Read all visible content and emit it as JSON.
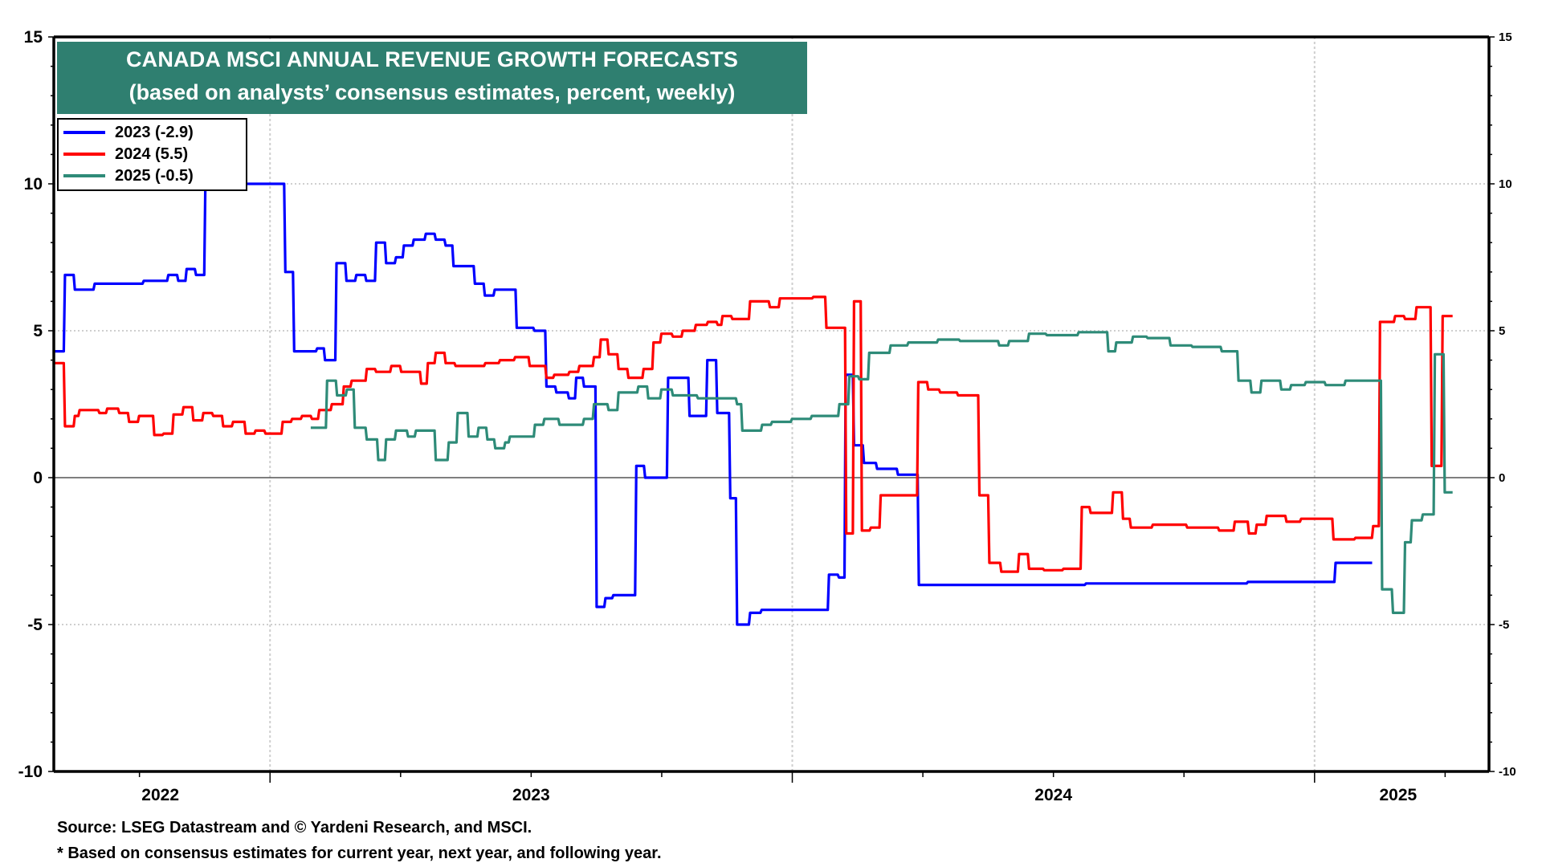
{
  "chart_data": {
    "type": "line",
    "title": "CANADA MSCI ANNUAL REVENUE GROWTH FORECASTS",
    "subtitle": "(based on analysts’ consensus estimates, percent, weekly)",
    "xlabel": "",
    "ylabel": "",
    "x_unit": "decimal year",
    "xlim": [
      2022.586,
      2025.334
    ],
    "ylim": [
      -10,
      15
    ],
    "y_ticks": [
      15,
      10,
      5,
      0,
      -5,
      -10
    ],
    "x_tick_labels": [
      {
        "label": "2022",
        "at": 2022.79
      },
      {
        "label": "2023",
        "at": 2023.5
      },
      {
        "label": "2024",
        "at": 2024.5
      },
      {
        "label": "2025",
        "at": 2025.16
      }
    ],
    "year_boundaries": [
      2023,
      2024,
      2025
    ],
    "grid": true,
    "zero_line": true,
    "legend_position": "top-left",
    "step": true,
    "series": [
      {
        "name": "2023 (-2.9)",
        "color": "#0000ff",
        "points": [
          [
            2022.586,
            4.3
          ],
          [
            2022.605,
            6.9
          ],
          [
            2022.624,
            6.4
          ],
          [
            2022.662,
            6.6
          ],
          [
            2022.756,
            6.7
          ],
          [
            2022.803,
            6.9
          ],
          [
            2022.822,
            6.7
          ],
          [
            2022.838,
            7.1
          ],
          [
            2022.856,
            6.9
          ],
          [
            2022.874,
            10.2
          ],
          [
            2022.889,
            10.0
          ],
          [
            2023.027,
            7.0
          ],
          [
            2023.044,
            4.3
          ],
          [
            2023.088,
            4.4
          ],
          [
            2023.103,
            4.0
          ],
          [
            2023.125,
            7.3
          ],
          [
            2023.144,
            6.7
          ],
          [
            2023.163,
            6.9
          ],
          [
            2023.182,
            6.7
          ],
          [
            2023.201,
            8.0
          ],
          [
            2023.22,
            7.3
          ],
          [
            2023.239,
            7.5
          ],
          [
            2023.254,
            7.9
          ],
          [
            2023.273,
            8.1
          ],
          [
            2023.296,
            8.3
          ],
          [
            2023.315,
            8.1
          ],
          [
            2023.334,
            7.9
          ],
          [
            2023.349,
            7.2
          ],
          [
            2023.39,
            6.6
          ],
          [
            2023.409,
            6.2
          ],
          [
            2023.428,
            6.4
          ],
          [
            2023.47,
            5.1
          ],
          [
            2023.504,
            5.0
          ],
          [
            2023.527,
            3.1
          ],
          [
            2023.546,
            2.9
          ],
          [
            2023.57,
            2.7
          ],
          [
            2023.584,
            3.4
          ],
          [
            2023.599,
            3.1
          ],
          [
            2023.623,
            -4.4
          ],
          [
            2023.64,
            -4.1
          ],
          [
            2023.655,
            -4.0
          ],
          [
            2023.699,
            0.4
          ],
          [
            2023.716,
            0.0
          ],
          [
            2023.76,
            3.4
          ],
          [
            2023.801,
            2.1
          ],
          [
            2023.835,
            4.0
          ],
          [
            2023.854,
            2.2
          ],
          [
            2023.879,
            -0.7
          ],
          [
            2023.892,
            -5.0
          ],
          [
            2023.917,
            -4.6
          ],
          [
            2023.939,
            -4.5
          ],
          [
            2024.068,
            -3.3
          ],
          [
            2024.087,
            -3.4
          ],
          [
            2024.1,
            3.5
          ],
          [
            2024.116,
            1.1
          ],
          [
            2024.135,
            0.5
          ],
          [
            2024.16,
            0.3
          ],
          [
            2024.2,
            0.1
          ],
          [
            2024.24,
            -3.65
          ],
          [
            2024.56,
            -3.6
          ],
          [
            2024.87,
            -3.55
          ],
          [
            2025.02,
            -3.55
          ],
          [
            2025.038,
            -2.9
          ],
          [
            2025.108,
            -2.9
          ]
        ]
      },
      {
        "name": "2024 (5.5)",
        "color": "#ff0000",
        "points": [
          [
            2022.586,
            3.9
          ],
          [
            2022.605,
            1.75
          ],
          [
            2022.624,
            2.1
          ],
          [
            2022.633,
            2.3
          ],
          [
            2022.671,
            2.2
          ],
          [
            2022.686,
            2.35
          ],
          [
            2022.709,
            2.2
          ],
          [
            2022.728,
            1.9
          ],
          [
            2022.747,
            2.1
          ],
          [
            2022.776,
            1.45
          ],
          [
            2022.794,
            1.5
          ],
          [
            2022.813,
            2.15
          ],
          [
            2022.832,
            2.4
          ],
          [
            2022.851,
            1.95
          ],
          [
            2022.87,
            2.2
          ],
          [
            2022.889,
            2.1
          ],
          [
            2022.908,
            1.75
          ],
          [
            2022.927,
            1.9
          ],
          [
            2022.951,
            1.5
          ],
          [
            2022.97,
            1.6
          ],
          [
            2022.989,
            1.5
          ],
          [
            2023.022,
            1.9
          ],
          [
            2023.04,
            2.0
          ],
          [
            2023.059,
            2.1
          ],
          [
            2023.078,
            2.0
          ],
          [
            2023.092,
            2.3
          ],
          [
            2023.116,
            2.5
          ],
          [
            2023.139,
            3.1
          ],
          [
            2023.154,
            3.3
          ],
          [
            2023.183,
            3.7
          ],
          [
            2023.201,
            3.6
          ],
          [
            2023.23,
            3.8
          ],
          [
            2023.249,
            3.6
          ],
          [
            2023.287,
            3.2
          ],
          [
            2023.3,
            3.9
          ],
          [
            2023.315,
            4.25
          ],
          [
            2023.334,
            3.9
          ],
          [
            2023.353,
            3.8
          ],
          [
            2023.41,
            3.9
          ],
          [
            2023.438,
            4.0
          ],
          [
            2023.467,
            4.1
          ],
          [
            2023.495,
            3.8
          ],
          [
            2023.527,
            3.4
          ],
          [
            2023.542,
            3.5
          ],
          [
            2023.571,
            3.6
          ],
          [
            2023.59,
            3.8
          ],
          [
            2023.618,
            4.1
          ],
          [
            2023.631,
            4.7
          ],
          [
            2023.646,
            4.2
          ],
          [
            2023.665,
            3.7
          ],
          [
            2023.684,
            3.4
          ],
          [
            2023.713,
            3.7
          ],
          [
            2023.732,
            4.6
          ],
          [
            2023.747,
            4.9
          ],
          [
            2023.769,
            4.8
          ],
          [
            2023.788,
            5.0
          ],
          [
            2023.813,
            5.2
          ],
          [
            2023.836,
            5.3
          ],
          [
            2023.855,
            5.2
          ],
          [
            2023.864,
            5.5
          ],
          [
            2023.883,
            5.4
          ],
          [
            2023.917,
            6.0
          ],
          [
            2023.955,
            5.8
          ],
          [
            2023.974,
            6.1
          ],
          [
            2024.038,
            6.15
          ],
          [
            2024.063,
            5.1
          ],
          [
            2024.101,
            -1.9
          ],
          [
            2024.116,
            6.0
          ],
          [
            2024.131,
            -1.8
          ],
          [
            2024.148,
            -1.7
          ],
          [
            2024.167,
            -0.6
          ],
          [
            2024.239,
            3.25
          ],
          [
            2024.258,
            3.0
          ],
          [
            2024.281,
            2.9
          ],
          [
            2024.315,
            2.8
          ],
          [
            2024.356,
            -0.6
          ],
          [
            2024.375,
            -2.9
          ],
          [
            2024.398,
            -3.2
          ],
          [
            2024.432,
            -2.6
          ],
          [
            2024.451,
            -3.1
          ],
          [
            2024.48,
            -3.15
          ],
          [
            2024.517,
            -3.1
          ],
          [
            2024.552,
            -1.0
          ],
          [
            2024.569,
            -1.2
          ],
          [
            2024.593,
            -1.2
          ],
          [
            2024.612,
            -0.5
          ],
          [
            2024.631,
            -1.4
          ],
          [
            2024.646,
            -1.7
          ],
          [
            2024.688,
            -1.6
          ],
          [
            2024.754,
            -1.7
          ],
          [
            2024.815,
            -1.8
          ],
          [
            2024.845,
            -1.5
          ],
          [
            2024.872,
            -1.9
          ],
          [
            2024.887,
            -1.6
          ],
          [
            2024.906,
            -1.3
          ],
          [
            2024.944,
            -1.5
          ],
          [
            2024.972,
            -1.4
          ],
          [
            2025.034,
            -2.1
          ],
          [
            2025.076,
            -2.05
          ],
          [
            2025.11,
            -1.65
          ],
          [
            2025.123,
            5.3
          ],
          [
            2025.152,
            5.5
          ],
          [
            2025.171,
            5.4
          ],
          [
            2025.193,
            5.8
          ],
          [
            2025.222,
            0.4
          ],
          [
            2025.243,
            5.5
          ],
          [
            2025.262,
            5.5
          ]
        ]
      },
      {
        "name": "2025 (-0.5)",
        "color": "#2e8b78",
        "points": [
          [
            2023.078,
            1.7
          ],
          [
            2023.107,
            3.3
          ],
          [
            2023.126,
            2.8
          ],
          [
            2023.145,
            3.0
          ],
          [
            2023.16,
            1.7
          ],
          [
            2023.183,
            1.3
          ],
          [
            2023.205,
            0.6
          ],
          [
            2023.22,
            1.3
          ],
          [
            2023.239,
            1.6
          ],
          [
            2023.262,
            1.4
          ],
          [
            2023.277,
            1.6
          ],
          [
            2023.315,
            0.6
          ],
          [
            2023.34,
            1.2
          ],
          [
            2023.357,
            2.2
          ],
          [
            2023.378,
            1.4
          ],
          [
            2023.397,
            1.7
          ],
          [
            2023.414,
            1.3
          ],
          [
            2023.429,
            1.0
          ],
          [
            2023.448,
            1.2
          ],
          [
            2023.457,
            1.4
          ],
          [
            2023.505,
            1.8
          ],
          [
            2023.523,
            2.0
          ],
          [
            2023.552,
            1.8
          ],
          [
            2023.599,
            2.0
          ],
          [
            2023.618,
            2.5
          ],
          [
            2023.646,
            2.3
          ],
          [
            2023.665,
            2.9
          ],
          [
            2023.703,
            3.1
          ],
          [
            2023.722,
            2.7
          ],
          [
            2023.747,
            3.0
          ],
          [
            2023.769,
            2.8
          ],
          [
            2023.817,
            2.7
          ],
          [
            2023.892,
            2.5
          ],
          [
            2023.902,
            1.6
          ],
          [
            2023.94,
            1.8
          ],
          [
            2023.959,
            1.9
          ],
          [
            2023.997,
            2.0
          ],
          [
            2024.035,
            2.1
          ],
          [
            2024.088,
            2.5
          ],
          [
            2024.107,
            3.45
          ],
          [
            2024.126,
            3.35
          ],
          [
            2024.145,
            4.25
          ],
          [
            2024.186,
            4.5
          ],
          [
            2024.22,
            4.6
          ],
          [
            2024.277,
            4.7
          ],
          [
            2024.319,
            4.65
          ],
          [
            2024.394,
            4.5
          ],
          [
            2024.413,
            4.65
          ],
          [
            2024.451,
            4.9
          ],
          [
            2024.485,
            4.85
          ],
          [
            2024.546,
            4.95
          ],
          [
            2024.603,
            4.3
          ],
          [
            2024.618,
            4.6
          ],
          [
            2024.65,
            4.8
          ],
          [
            2024.678,
            4.75
          ],
          [
            2024.722,
            4.5
          ],
          [
            2024.764,
            4.45
          ],
          [
            2024.82,
            4.3
          ],
          [
            2024.852,
            3.3
          ],
          [
            2024.877,
            2.9
          ],
          [
            2024.896,
            3.3
          ],
          [
            2024.934,
            3.0
          ],
          [
            2024.953,
            3.15
          ],
          [
            2024.981,
            3.25
          ],
          [
            2025.019,
            3.15
          ],
          [
            2025.057,
            3.3
          ],
          [
            2025.127,
            -3.8
          ],
          [
            2025.148,
            -4.6
          ],
          [
            2025.171,
            -2.2
          ],
          [
            2025.184,
            -1.45
          ],
          [
            2025.205,
            -1.25
          ],
          [
            2025.228,
            4.2
          ],
          [
            2025.247,
            -0.5
          ],
          [
            2025.262,
            -0.5
          ]
        ]
      }
    ]
  },
  "header": {
    "title": "CANADA MSCI ANNUAL REVENUE GROWTH FORECASTS",
    "subtitle": "(based on analysts’ consensus estimates, percent, weekly)",
    "title_bg": "#2f7f70"
  },
  "legend": [
    {
      "label": "2023 (-2.9)",
      "color": "#0000ff"
    },
    {
      "label": "2024 (5.5)",
      "color": "#ff0000"
    },
    {
      "label": "2025 (-0.5)",
      "color": "#2e8b78"
    }
  ],
  "footer": {
    "source": "Source: LSEG Datastream and © Yardeni Research, and MSCI.",
    "note": "* Based on consensus estimates for current year, next year, and following year."
  }
}
